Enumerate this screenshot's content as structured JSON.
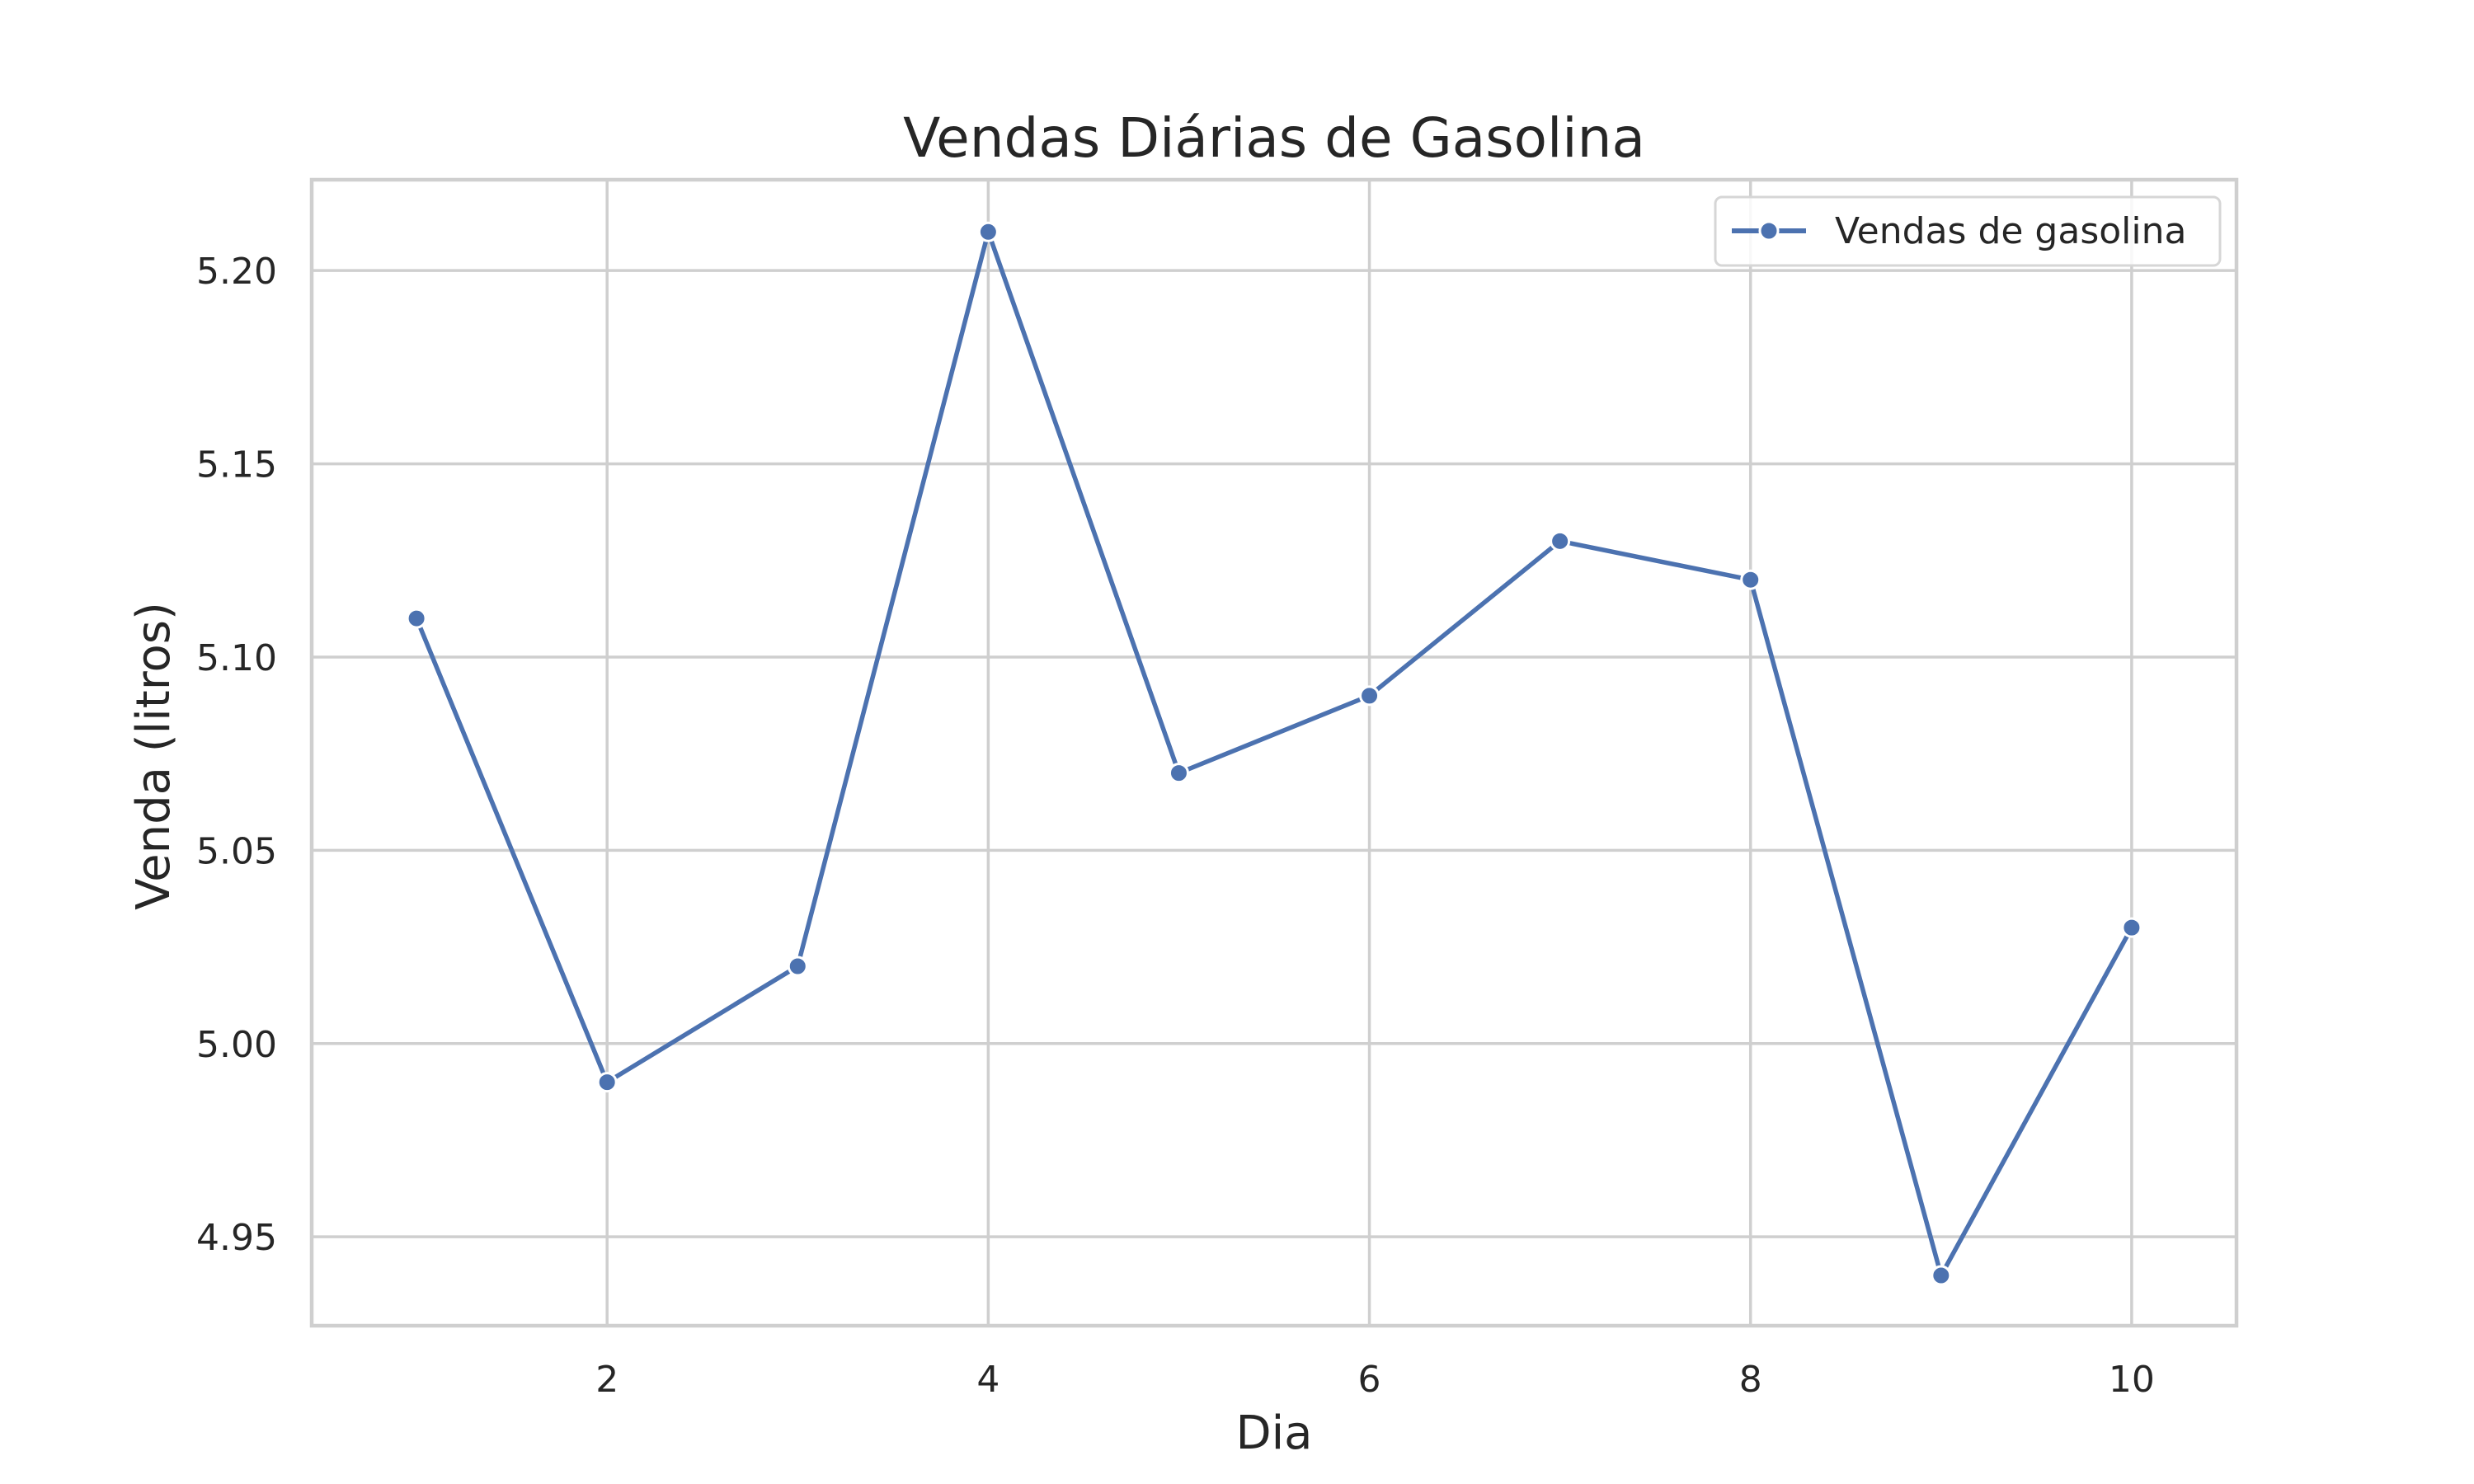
{
  "chart_data": {
    "type": "line",
    "title": "Vendas Diárias de Gasolina",
    "xlabel": "Dia",
    "ylabel": "Venda (litros)",
    "x": [
      1,
      2,
      3,
      4,
      5,
      6,
      7,
      8,
      9,
      10
    ],
    "series": [
      {
        "name": "Vendas de gasolina",
        "values": [
          5.11,
          4.99,
          5.02,
          5.21,
          5.07,
          5.09,
          5.13,
          5.12,
          4.94,
          5.03
        ],
        "color": "#4c72b0",
        "marker": "circle"
      }
    ],
    "xticks": [
      2,
      4,
      6,
      8,
      10
    ],
    "xtick_labels": [
      "2",
      "4",
      "6",
      "8",
      "10"
    ],
    "yticks": [
      4.95,
      5.0,
      5.05,
      5.1,
      5.15,
      5.2
    ],
    "ytick_labels": [
      "4.95",
      "5.00",
      "5.05",
      "5.10",
      "5.15",
      "5.20"
    ],
    "xlim": [
      0.45,
      10.55
    ],
    "ylim": [
      4.927,
      5.2235
    ],
    "grid": true,
    "legend_position": "top-right",
    "background": "#ffffff",
    "grid_color": "#cfcfcf"
  }
}
